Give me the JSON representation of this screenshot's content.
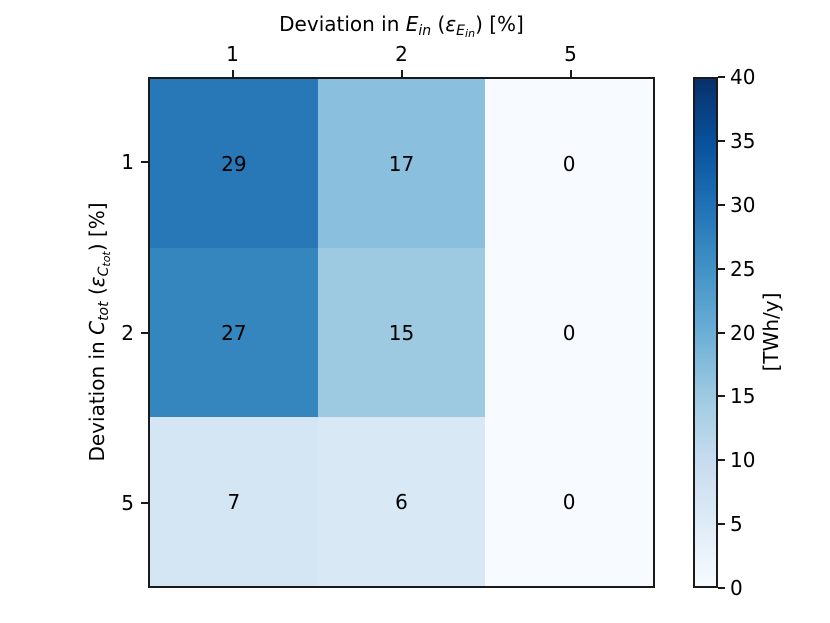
{
  "figure": {
    "background": "#ffffff",
    "frame_color": "#1a1a1a",
    "text_color": "#000000"
  },
  "chart_data": {
    "type": "heatmap",
    "title": "Deviation in Ein (εEin) [%]",
    "title_segments": [
      {
        "t": "Deviation in ",
        "s": "n"
      },
      {
        "t": "E",
        "s": "i"
      },
      {
        "t": "in",
        "s": "is"
      },
      {
        "t": " (",
        "s": "n"
      },
      {
        "t": "ε",
        "s": "i"
      },
      {
        "t": "E",
        "s": "is"
      },
      {
        "t": "in",
        "s": "iss"
      },
      {
        "t": ") [%]",
        "s": "n"
      }
    ],
    "x_axis": {
      "side": "top",
      "label": "Deviation in Ein (εEin) [%]",
      "tick_labels": [
        "1",
        "2",
        "5"
      ]
    },
    "y_axis": {
      "side": "left",
      "label": "Deviation in Ctot (εCtot) [%]",
      "label_segments": [
        {
          "t": "Deviation in ",
          "s": "n"
        },
        {
          "t": "C",
          "s": "i"
        },
        {
          "t": "tot",
          "s": "is"
        },
        {
          "t": " (",
          "s": "n"
        },
        {
          "t": "ε",
          "s": "i"
        },
        {
          "t": "C",
          "s": "is"
        },
        {
          "t": "tot",
          "s": "iss"
        },
        {
          "t": ") [%]",
          "s": "n"
        }
      ],
      "tick_labels": [
        "1",
        "2",
        "5"
      ]
    },
    "values": [
      [
        29,
        17,
        0
      ],
      [
        27,
        15,
        0
      ],
      [
        7,
        6,
        0
      ]
    ],
    "vmin": 0,
    "vmax": 40,
    "annotations_color": "#000000",
    "colormap": {
      "name": "Blues",
      "stops": [
        {
          "pos": 0.0,
          "color": "#f7fbff"
        },
        {
          "pos": 0.125,
          "color": "#deebf7"
        },
        {
          "pos": 0.25,
          "color": "#c6dbef"
        },
        {
          "pos": 0.375,
          "color": "#9ecae1"
        },
        {
          "pos": 0.5,
          "color": "#6baed6"
        },
        {
          "pos": 0.625,
          "color": "#4292c6"
        },
        {
          "pos": 0.75,
          "color": "#2171b5"
        },
        {
          "pos": 0.875,
          "color": "#08519c"
        },
        {
          "pos": 1.0,
          "color": "#08306b"
        }
      ]
    },
    "colorbar": {
      "label": "[TWh/y]",
      "ticks": [
        0,
        5,
        10,
        15,
        20,
        25,
        30,
        35,
        40
      ],
      "min": 0,
      "max": 40
    }
  }
}
